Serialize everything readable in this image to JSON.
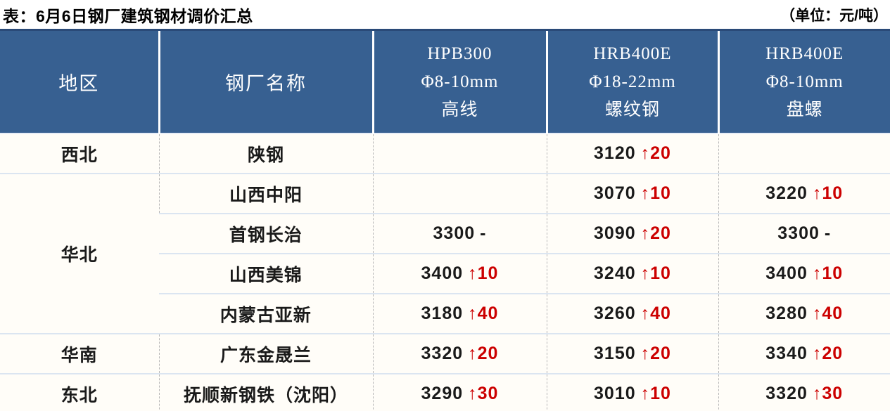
{
  "title": "表：6月6日钢厂建筑钢材调价汇总",
  "unit": "（单位：元/吨）",
  "table": {
    "columns": [
      {
        "label": "地区"
      },
      {
        "label": "钢厂名称"
      },
      {
        "lines": [
          "HPB300",
          "Φ8-10mm",
          "高线"
        ]
      },
      {
        "lines": [
          "HRB400E",
          "Φ18-22mm",
          "螺纹钢"
        ]
      },
      {
        "lines": [
          "HRB400E",
          "Φ8-10mm",
          "盘螺"
        ]
      }
    ],
    "rows": [
      {
        "region": "西北",
        "region_span": 1,
        "plant": "陕钢",
        "cells": [
          {
            "price": "",
            "change": ""
          },
          {
            "price": "3120",
            "change": "↑20"
          },
          {
            "price": "",
            "change": ""
          }
        ]
      },
      {
        "region": "华北",
        "region_span": 4,
        "plant": "山西中阳",
        "cells": [
          {
            "price": "",
            "change": ""
          },
          {
            "price": "3070",
            "change": "↑10"
          },
          {
            "price": "3220",
            "change": "↑10"
          }
        ]
      },
      {
        "plant": "首钢长治",
        "cells": [
          {
            "price": "3300",
            "change": "-"
          },
          {
            "price": "3090",
            "change": "↑20"
          },
          {
            "price": "3300",
            "change": "-"
          }
        ]
      },
      {
        "plant": "山西美锦",
        "cells": [
          {
            "price": "3400",
            "change": "↑10"
          },
          {
            "price": "3240",
            "change": "↑10"
          },
          {
            "price": "3400",
            "change": "↑10"
          }
        ]
      },
      {
        "plant": "内蒙古亚新",
        "cells": [
          {
            "price": "3180",
            "change": "↑40"
          },
          {
            "price": "3260",
            "change": "↑40"
          },
          {
            "price": "3280",
            "change": "↑40"
          }
        ]
      },
      {
        "region": "华南",
        "region_span": 1,
        "plant": "广东金晟兰",
        "cells": [
          {
            "price": "3320",
            "change": "↑20"
          },
          {
            "price": "3150",
            "change": "↑20"
          },
          {
            "price": "3340",
            "change": "↑20"
          }
        ]
      },
      {
        "region": "东北",
        "region_span": 1,
        "plant": "抚顺新钢铁（沈阳）",
        "cells": [
          {
            "price": "3290",
            "change": "↑30"
          },
          {
            "price": "3010",
            "change": "↑10"
          },
          {
            "price": "3320",
            "change": "↑30"
          }
        ]
      }
    ]
  },
  "colors": {
    "header_bg": "#376091",
    "up_change_red": "#cc0000",
    "row_border_blue": "#dbe5f1",
    "outer_border_navy": "#2a4a78"
  }
}
